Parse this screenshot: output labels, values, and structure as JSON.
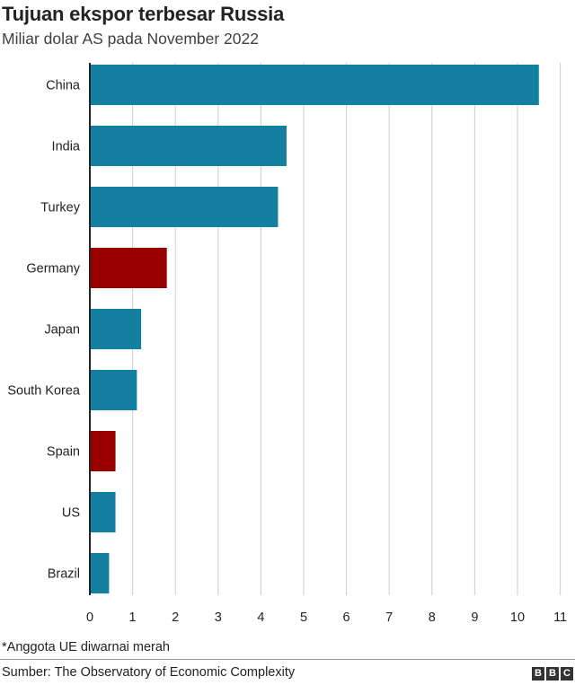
{
  "title": "Tujuan ekspor terbesar Russia",
  "subtitle": "Miliar dolar AS pada November 2022",
  "note": "*Anggota UE diwarnai merah",
  "source": "Sumber: The Observatory of Economic Complexity",
  "logo_letters": [
    "B",
    "B",
    "C"
  ],
  "colors": {
    "non_eu": "#1380A1",
    "eu": "#990000",
    "grid": "#cccccc",
    "axis": "#222222"
  },
  "chart_data": {
    "type": "bar",
    "orientation": "horizontal",
    "title": "Tujuan ekspor terbesar Russia",
    "subtitle": "Miliar dolar AS pada November 2022",
    "categories": [
      "China",
      "India",
      "Turkey",
      "Germany",
      "Japan",
      "South Korea",
      "Spain",
      "US",
      "Brazil"
    ],
    "values": [
      10.5,
      4.6,
      4.4,
      1.8,
      1.2,
      1.1,
      0.6,
      0.6,
      0.45
    ],
    "eu_member": [
      false,
      false,
      false,
      true,
      false,
      false,
      true,
      false,
      false
    ],
    "xlim": [
      0,
      11
    ],
    "xticks": [
      "0",
      "1",
      "2",
      "3",
      "4",
      "5",
      "6",
      "7",
      "8",
      "9",
      "10",
      "11"
    ],
    "grid": true
  }
}
